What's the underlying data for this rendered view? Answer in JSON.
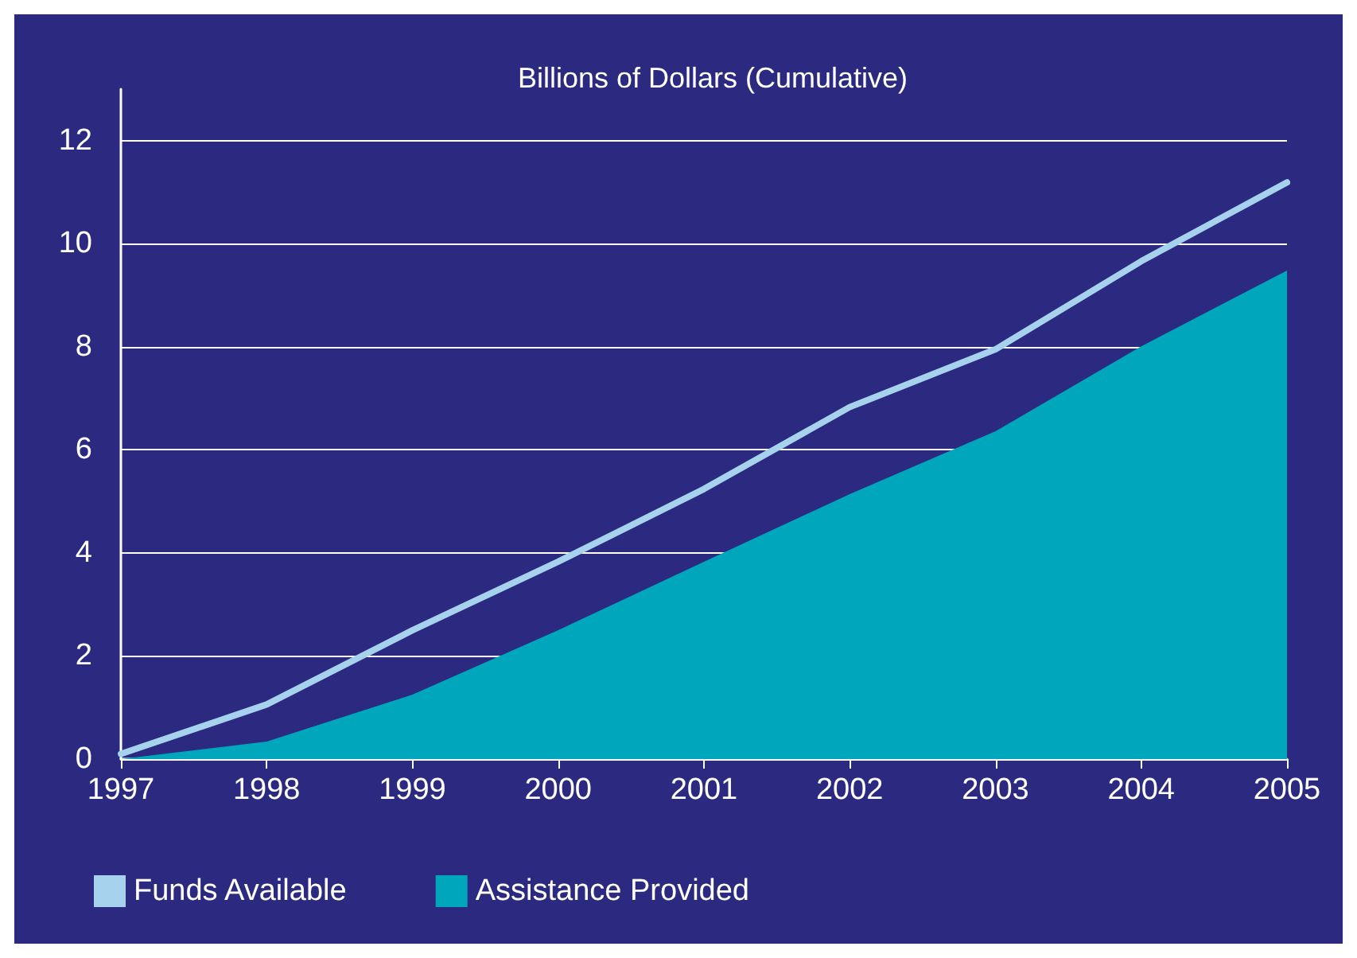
{
  "chart_data": {
    "type": "line",
    "title": "Billions of Dollars (Cumulative)",
    "categories": [
      "1997",
      "1998",
      "1999",
      "2000",
      "2001",
      "2002",
      "2003",
      "2004",
      "2005"
    ],
    "series": [
      {
        "name": "Funds Available",
        "color": "#a6d2ee",
        "values": [
          0.1,
          1.06,
          2.5,
          3.83,
          5.24,
          6.83,
          7.95,
          9.66,
          11.19
        ]
      },
      {
        "name": "Assistance Provided",
        "type": "area",
        "color": "#00a6bb",
        "values": [
          0,
          0.34,
          1.25,
          2.5,
          3.83,
          5.14,
          6.36,
          8.01,
          9.48
        ]
      }
    ],
    "ylim": [
      0,
      13
    ],
    "yticks": [
      0,
      2,
      4,
      6,
      8,
      10,
      12
    ],
    "grid": "y",
    "legend": "bottom left",
    "marker": "none",
    "line_style": "solid"
  }
}
